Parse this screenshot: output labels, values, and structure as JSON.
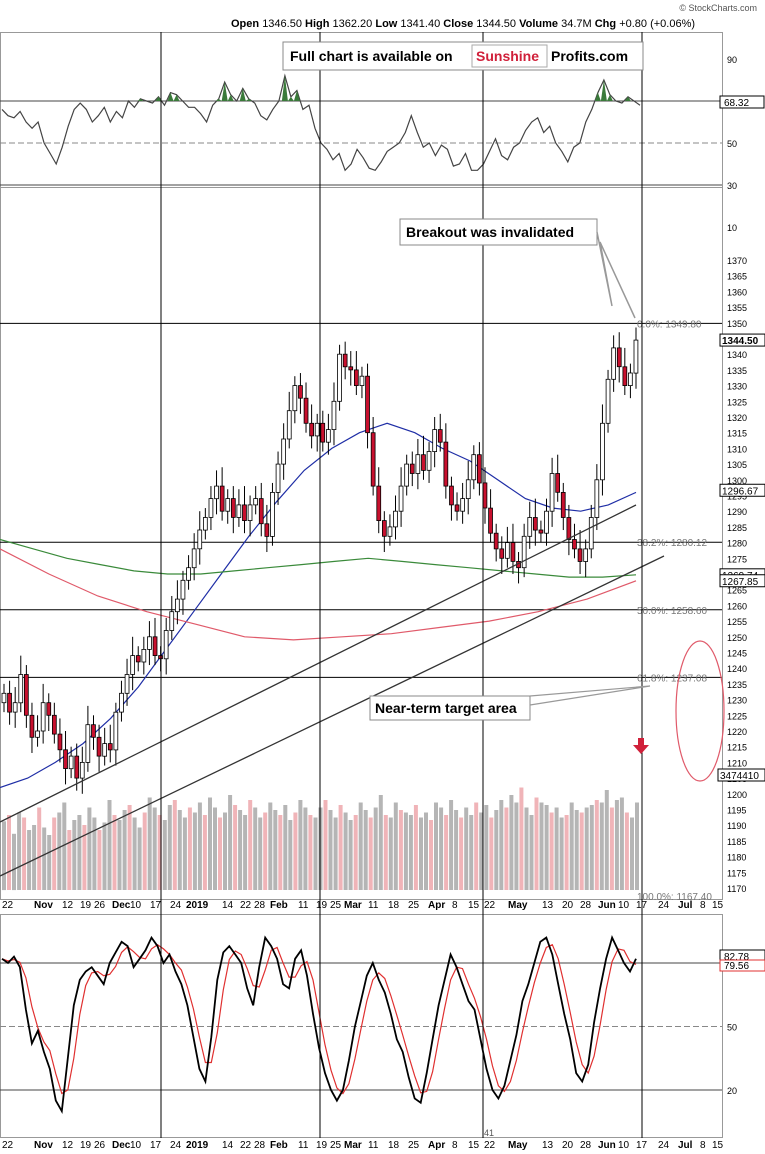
{
  "watermark": "© StockCharts.com",
  "header": {
    "open_label": "Open",
    "open": "1346.50",
    "high_label": "High",
    "high": "1362.20",
    "low_label": "Low",
    "low": "1341.40",
    "close_label": "Close",
    "close": "1344.50",
    "volume_label": "Volume",
    "volume": "34.7M",
    "chg_label": "Chg",
    "chg": "+0.80 (+0.06%)"
  },
  "banner": {
    "prefix": "Full chart is available on",
    "brand_red": "Sunshine",
    "brand_black": "Profits.com"
  },
  "annotations": {
    "breakout": "Breakout was invalidated",
    "target": "Near-term target area"
  },
  "colors": {
    "up_candle": "#ffffff",
    "down_candle": "#c8102e",
    "sma50": "#1f2ea6",
    "sma100": "#3a8a3a",
    "sma200": "#e05a6a",
    "volume_up": "#b5b5b5",
    "volume_down": "#f0b4b8",
    "stoch_k": "#000000",
    "stoch_d": "#e03030",
    "target_ellipse": "#e05a6a",
    "arrow": "#d0203a"
  },
  "chart_data": [
    {
      "type": "line",
      "panel": "RSI",
      "yticks": [
        "90",
        "70",
        "50",
        "30",
        "10"
      ],
      "last_value": "68.32",
      "values": [
        66,
        63,
        62,
        65,
        60,
        57,
        60,
        50,
        45,
        40,
        48,
        58,
        66,
        69,
        66,
        60,
        63,
        67,
        60,
        65,
        62,
        70,
        67,
        71,
        70,
        69,
        72,
        68,
        74,
        73,
        70,
        67,
        67,
        64,
        60,
        68,
        71,
        79,
        73,
        70,
        76,
        71,
        69,
        63,
        61,
        66,
        70,
        82,
        72,
        75,
        66,
        68,
        57,
        50,
        47,
        42,
        45,
        37,
        40,
        47,
        43,
        38,
        37,
        41,
        46,
        48,
        50,
        55,
        63,
        55,
        48,
        50,
        44,
        49,
        47,
        39,
        40,
        45,
        37,
        37,
        40,
        46,
        52,
        44,
        42,
        48,
        50,
        56,
        60,
        62,
        55,
        58,
        50,
        46,
        41,
        48,
        50,
        60,
        66,
        74,
        80,
        73,
        70,
        69,
        72,
        70,
        68
      ]
    },
    {
      "type": "candlestick",
      "panel": "Price",
      "yticks": [
        "1370",
        "1365",
        "1360",
        "1355",
        "1350",
        "1345",
        "1340",
        "1335",
        "1330",
        "1325",
        "1320",
        "1315",
        "1310",
        "1305",
        "1300",
        "1295",
        "1290",
        "1285",
        "1280",
        "1275",
        "1270",
        "1265",
        "1260",
        "1255",
        "1250",
        "1245",
        "1240",
        "1235",
        "1230",
        "1225",
        "1220",
        "1215",
        "1210",
        "1205",
        "1200",
        "1195",
        "1190",
        "1185",
        "1180",
        "1175",
        "1170"
      ],
      "ylim": [
        1167,
        1372
      ],
      "price_labels": {
        "last": "1344.50",
        "sma50": "1296.67",
        "sma100": "1269.74",
        "sma200": "1267.85",
        "volume": "3474410"
      },
      "fib_levels": [
        {
          "label": "0.0%: 1349.80",
          "value": 1349.8
        },
        {
          "label": "38.2%: 1280.12",
          "value": 1280.12
        },
        {
          "label": "50.0%: 1258.60",
          "value": 1258.6
        },
        {
          "label": "61.8%: 1237.08",
          "value": 1237.08
        },
        {
          "label": "100.0%: 1167.40",
          "value": 1167.4
        }
      ],
      "closes": [
        1232,
        1226,
        1229,
        1238,
        1225,
        1218,
        1220,
        1229,
        1225,
        1219,
        1214,
        1208,
        1212,
        1205,
        1210,
        1222,
        1218,
        1212,
        1216,
        1214,
        1226,
        1232,
        1238,
        1244,
        1242,
        1246,
        1250,
        1244,
        1243,
        1252,
        1258,
        1262,
        1268,
        1272,
        1278,
        1284,
        1288,
        1294,
        1298,
        1290,
        1294,
        1288,
        1292,
        1287,
        1292,
        1294,
        1286,
        1282,
        1296,
        1305,
        1313,
        1322,
        1330,
        1326,
        1318,
        1314,
        1318,
        1312,
        1316,
        1325,
        1340,
        1336,
        1335,
        1330,
        1333,
        1315,
        1298,
        1287,
        1282,
        1285,
        1290,
        1298,
        1305,
        1302,
        1308,
        1303,
        1309,
        1316,
        1312,
        1298,
        1292,
        1290,
        1294,
        1300,
        1308,
        1299,
        1291,
        1283,
        1278,
        1275,
        1280,
        1274,
        1272,
        1282,
        1288,
        1284,
        1283,
        1290,
        1302,
        1296,
        1288,
        1281,
        1278,
        1274,
        1278,
        1288,
        1300,
        1318,
        1332,
        1342,
        1336,
        1330,
        1334,
        1344.5
      ],
      "sma50": [
        1202,
        1205,
        1210,
        1216,
        1224,
        1234,
        1246,
        1258,
        1270,
        1282,
        1293,
        1303,
        1310,
        1315,
        1318,
        1315,
        1310,
        1306,
        1300,
        1294,
        1291,
        1290,
        1292,
        1296
      ],
      "sma100": [
        1281,
        1278,
        1275,
        1273,
        1271,
        1270,
        1270,
        1271,
        1272,
        1273,
        1274,
        1275,
        1274,
        1273,
        1272,
        1271,
        1270,
        1269,
        1269,
        1269.74
      ],
      "sma200": [
        1278,
        1270,
        1263,
        1258,
        1254,
        1250,
        1249,
        1250,
        1251,
        1253,
        1255,
        1258,
        1262,
        1267.85
      ],
      "volume_ylim": [
        0,
        100
      ],
      "volume": [
        55,
        60,
        45,
        62,
        58,
        48,
        52,
        66,
        50,
        44,
        58,
        62,
        70,
        48,
        56,
        60,
        52,
        66,
        58,
        48,
        54,
        72,
        60,
        56,
        64,
        68,
        58,
        50,
        62,
        74,
        66,
        60,
        56,
        68,
        72,
        64,
        58,
        66,
        62,
        70,
        60,
        74,
        66,
        58,
        62,
        76,
        68,
        64,
        60,
        72,
        66,
        58,
        62,
        70,
        64,
        60,
        68,
        56,
        62,
        72,
        66,
        60,
        58,
        66,
        72,
        64,
        58,
        68,
        62,
        56,
        60,
        70,
        64,
        58,
        66,
        76,
        60,
        58,
        70,
        64,
        62,
        60,
        68,
        58,
        62,
        56,
        70,
        66,
        60,
        72,
        64,
        58,
        66,
        60,
        70,
        62,
        68,
        58,
        64,
        72,
        66,
        76,
        70,
        82,
        66,
        60,
        74,
        70,
        68,
        62,
        66,
        58,
        60,
        70,
        64,
        62,
        66,
        68,
        72,
        70,
        80,
        66,
        72,
        74,
        62,
        58,
        70
      ]
    },
    {
      "type": "line",
      "panel": "Stochastic",
      "yticks": [
        "80",
        "50",
        "20"
      ],
      "k_label": "82.78",
      "d_label": "79.56",
      "k_values": [
        82,
        80,
        83,
        78,
        58,
        42,
        48,
        38,
        30,
        15,
        10,
        35,
        60,
        72,
        76,
        78,
        74,
        70,
        80,
        85,
        90,
        88,
        78,
        82,
        86,
        92,
        88,
        80,
        84,
        76,
        70,
        60,
        45,
        30,
        24,
        45,
        72,
        85,
        88,
        84,
        80,
        68,
        60,
        78,
        92,
        88,
        82,
        70,
        68,
        82,
        86,
        74,
        56,
        40,
        28,
        20,
        15,
        20,
        34,
        50,
        62,
        74,
        80,
        72,
        66,
        56,
        44,
        38,
        26,
        16,
        14,
        28,
        44,
        60,
        72,
        84,
        78,
        70,
        62,
        58,
        44,
        30,
        20,
        16,
        22,
        34,
        46,
        62,
        70,
        80,
        90,
        92,
        84,
        70,
        56,
        44,
        28,
        24,
        32,
        52,
        68,
        82,
        92,
        86,
        80,
        76,
        82
      ]
    }
  ],
  "axis": {
    "months": [
      "22",
      "Nov",
      "12",
      "19",
      "26",
      "Dec",
      "10",
      "17",
      "24",
      "2019",
      "14",
      "22",
      "28",
      "Feb",
      "11",
      "19",
      "25",
      "Mar",
      "11",
      "18",
      "25",
      "Apr",
      "8",
      "15",
      "22",
      "May",
      "13",
      "20",
      "28",
      "Jun",
      "10",
      "17",
      "24",
      "Jul",
      "8",
      "15"
    ],
    "stoch_low_mark": "41"
  }
}
